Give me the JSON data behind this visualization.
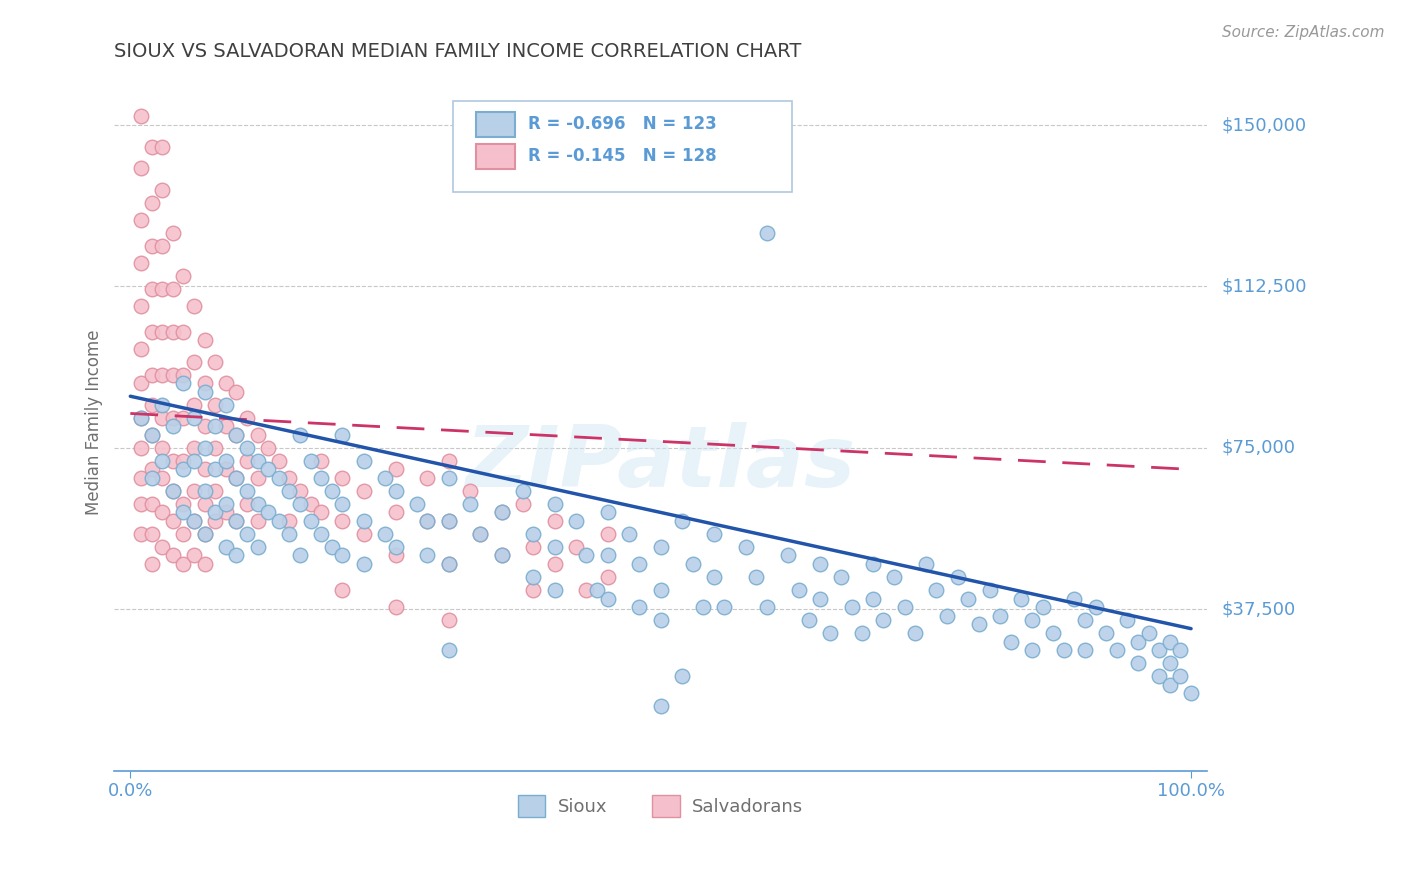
{
  "title": "SIOUX VS SALVADORAN MEDIAN FAMILY INCOME CORRELATION CHART",
  "source_text": "Source: ZipAtlas.com",
  "ylabel": "Median Family Income",
  "yticks": [
    0,
    37500,
    75000,
    112500,
    150000
  ],
  "ytick_labels": [
    "",
    "$37,500",
    "$75,000",
    "$112,500",
    "$150,000"
  ],
  "xlim": [
    -0.015,
    1.015
  ],
  "ylim": [
    0,
    162000
  ],
  "sioux_color": "#b8d0e8",
  "sioux_edge_color": "#7aadd0",
  "salv_color": "#f5c0cc",
  "salv_edge_color": "#e090a0",
  "axis_color": "#5b9bd5",
  "grid_color": "#c8c8c8",
  "watermark": "ZIPatlas",
  "sioux_line_color": "#2255aa",
  "salv_line_color": "#cc3366",
  "sioux_intercept": 87000,
  "sioux_slope": -54000,
  "salv_intercept": 83000,
  "salv_slope": -13000,
  "background_color": "#ffffff",
  "sioux_points": [
    [
      0.01,
      82000
    ],
    [
      0.02,
      78000
    ],
    [
      0.02,
      68000
    ],
    [
      0.03,
      72000
    ],
    [
      0.03,
      85000
    ],
    [
      0.04,
      65000
    ],
    [
      0.04,
      80000
    ],
    [
      0.05,
      90000
    ],
    [
      0.05,
      70000
    ],
    [
      0.05,
      60000
    ],
    [
      0.06,
      82000
    ],
    [
      0.06,
      72000
    ],
    [
      0.06,
      58000
    ],
    [
      0.07,
      88000
    ],
    [
      0.07,
      75000
    ],
    [
      0.07,
      65000
    ],
    [
      0.07,
      55000
    ],
    [
      0.08,
      80000
    ],
    [
      0.08,
      70000
    ],
    [
      0.08,
      60000
    ],
    [
      0.09,
      85000
    ],
    [
      0.09,
      72000
    ],
    [
      0.09,
      62000
    ],
    [
      0.09,
      52000
    ],
    [
      0.1,
      78000
    ],
    [
      0.1,
      68000
    ],
    [
      0.1,
      58000
    ],
    [
      0.1,
      50000
    ],
    [
      0.11,
      75000
    ],
    [
      0.11,
      65000
    ],
    [
      0.11,
      55000
    ],
    [
      0.12,
      72000
    ],
    [
      0.12,
      62000
    ],
    [
      0.12,
      52000
    ],
    [
      0.13,
      70000
    ],
    [
      0.13,
      60000
    ],
    [
      0.14,
      68000
    ],
    [
      0.14,
      58000
    ],
    [
      0.15,
      65000
    ],
    [
      0.15,
      55000
    ],
    [
      0.16,
      78000
    ],
    [
      0.16,
      62000
    ],
    [
      0.16,
      50000
    ],
    [
      0.17,
      72000
    ],
    [
      0.17,
      58000
    ],
    [
      0.18,
      68000
    ],
    [
      0.18,
      55000
    ],
    [
      0.19,
      65000
    ],
    [
      0.19,
      52000
    ],
    [
      0.2,
      78000
    ],
    [
      0.2,
      62000
    ],
    [
      0.2,
      50000
    ],
    [
      0.22,
      72000
    ],
    [
      0.22,
      58000
    ],
    [
      0.22,
      48000
    ],
    [
      0.24,
      68000
    ],
    [
      0.24,
      55000
    ],
    [
      0.25,
      65000
    ],
    [
      0.25,
      52000
    ],
    [
      0.27,
      62000
    ],
    [
      0.28,
      58000
    ],
    [
      0.28,
      50000
    ],
    [
      0.3,
      68000
    ],
    [
      0.3,
      58000
    ],
    [
      0.3,
      48000
    ],
    [
      0.32,
      62000
    ],
    [
      0.33,
      55000
    ],
    [
      0.35,
      60000
    ],
    [
      0.35,
      50000
    ],
    [
      0.37,
      65000
    ],
    [
      0.38,
      55000
    ],
    [
      0.38,
      45000
    ],
    [
      0.4,
      62000
    ],
    [
      0.4,
      52000
    ],
    [
      0.4,
      42000
    ],
    [
      0.42,
      58000
    ],
    [
      0.43,
      50000
    ],
    [
      0.44,
      42000
    ],
    [
      0.45,
      60000
    ],
    [
      0.45,
      50000
    ],
    [
      0.45,
      40000
    ],
    [
      0.47,
      55000
    ],
    [
      0.48,
      48000
    ],
    [
      0.48,
      38000
    ],
    [
      0.5,
      52000
    ],
    [
      0.5,
      42000
    ],
    [
      0.5,
      35000
    ],
    [
      0.52,
      58000
    ],
    [
      0.53,
      48000
    ],
    [
      0.54,
      38000
    ],
    [
      0.55,
      55000
    ],
    [
      0.55,
      45000
    ],
    [
      0.56,
      38000
    ],
    [
      0.58,
      52000
    ],
    [
      0.59,
      45000
    ],
    [
      0.6,
      38000
    ],
    [
      0.62,
      50000
    ],
    [
      0.63,
      42000
    ],
    [
      0.64,
      35000
    ],
    [
      0.65,
      48000
    ],
    [
      0.65,
      40000
    ],
    [
      0.66,
      32000
    ],
    [
      0.67,
      45000
    ],
    [
      0.68,
      38000
    ],
    [
      0.69,
      32000
    ],
    [
      0.7,
      48000
    ],
    [
      0.7,
      40000
    ],
    [
      0.71,
      35000
    ],
    [
      0.72,
      45000
    ],
    [
      0.73,
      38000
    ],
    [
      0.74,
      32000
    ],
    [
      0.75,
      48000
    ],
    [
      0.76,
      42000
    ],
    [
      0.77,
      36000
    ],
    [
      0.78,
      45000
    ],
    [
      0.79,
      40000
    ],
    [
      0.8,
      34000
    ],
    [
      0.81,
      42000
    ],
    [
      0.82,
      36000
    ],
    [
      0.83,
      30000
    ],
    [
      0.84,
      40000
    ],
    [
      0.85,
      35000
    ],
    [
      0.85,
      28000
    ],
    [
      0.86,
      38000
    ],
    [
      0.87,
      32000
    ],
    [
      0.88,
      28000
    ],
    [
      0.89,
      40000
    ],
    [
      0.9,
      35000
    ],
    [
      0.9,
      28000
    ],
    [
      0.91,
      38000
    ],
    [
      0.92,
      32000
    ],
    [
      0.93,
      28000
    ],
    [
      0.94,
      35000
    ],
    [
      0.95,
      30000
    ],
    [
      0.95,
      25000
    ],
    [
      0.96,
      32000
    ],
    [
      0.97,
      28000
    ],
    [
      0.97,
      22000
    ],
    [
      0.98,
      30000
    ],
    [
      0.98,
      25000
    ],
    [
      0.98,
      20000
    ],
    [
      0.99,
      28000
    ],
    [
      0.99,
      22000
    ],
    [
      1.0,
      18000
    ],
    [
      0.5,
      15000
    ],
    [
      0.52,
      22000
    ],
    [
      0.3,
      28000
    ],
    [
      0.6,
      125000
    ]
  ],
  "salv_points": [
    [
      0.01,
      152000
    ],
    [
      0.01,
      140000
    ],
    [
      0.01,
      128000
    ],
    [
      0.01,
      118000
    ],
    [
      0.01,
      108000
    ],
    [
      0.01,
      98000
    ],
    [
      0.01,
      90000
    ],
    [
      0.01,
      82000
    ],
    [
      0.01,
      75000
    ],
    [
      0.01,
      68000
    ],
    [
      0.01,
      62000
    ],
    [
      0.01,
      55000
    ],
    [
      0.02,
      145000
    ],
    [
      0.02,
      132000
    ],
    [
      0.02,
      122000
    ],
    [
      0.02,
      112000
    ],
    [
      0.02,
      102000
    ],
    [
      0.02,
      92000
    ],
    [
      0.02,
      85000
    ],
    [
      0.02,
      78000
    ],
    [
      0.02,
      70000
    ],
    [
      0.02,
      62000
    ],
    [
      0.02,
      55000
    ],
    [
      0.02,
      48000
    ],
    [
      0.03,
      135000
    ],
    [
      0.03,
      122000
    ],
    [
      0.03,
      112000
    ],
    [
      0.03,
      102000
    ],
    [
      0.03,
      92000
    ],
    [
      0.03,
      82000
    ],
    [
      0.03,
      75000
    ],
    [
      0.03,
      68000
    ],
    [
      0.03,
      60000
    ],
    [
      0.03,
      52000
    ],
    [
      0.04,
      125000
    ],
    [
      0.04,
      112000
    ],
    [
      0.04,
      102000
    ],
    [
      0.04,
      92000
    ],
    [
      0.04,
      82000
    ],
    [
      0.04,
      72000
    ],
    [
      0.04,
      65000
    ],
    [
      0.04,
      58000
    ],
    [
      0.04,
      50000
    ],
    [
      0.05,
      115000
    ],
    [
      0.05,
      102000
    ],
    [
      0.05,
      92000
    ],
    [
      0.05,
      82000
    ],
    [
      0.05,
      72000
    ],
    [
      0.05,
      62000
    ],
    [
      0.05,
      55000
    ],
    [
      0.05,
      48000
    ],
    [
      0.06,
      108000
    ],
    [
      0.06,
      95000
    ],
    [
      0.06,
      85000
    ],
    [
      0.06,
      75000
    ],
    [
      0.06,
      65000
    ],
    [
      0.06,
      58000
    ],
    [
      0.06,
      50000
    ],
    [
      0.07,
      100000
    ],
    [
      0.07,
      90000
    ],
    [
      0.07,
      80000
    ],
    [
      0.07,
      70000
    ],
    [
      0.07,
      62000
    ],
    [
      0.07,
      55000
    ],
    [
      0.07,
      48000
    ],
    [
      0.08,
      95000
    ],
    [
      0.08,
      85000
    ],
    [
      0.08,
      75000
    ],
    [
      0.08,
      65000
    ],
    [
      0.08,
      58000
    ],
    [
      0.09,
      90000
    ],
    [
      0.09,
      80000
    ],
    [
      0.09,
      70000
    ],
    [
      0.09,
      60000
    ],
    [
      0.1,
      88000
    ],
    [
      0.1,
      78000
    ],
    [
      0.1,
      68000
    ],
    [
      0.1,
      58000
    ],
    [
      0.11,
      82000
    ],
    [
      0.11,
      72000
    ],
    [
      0.11,
      62000
    ],
    [
      0.12,
      78000
    ],
    [
      0.12,
      68000
    ],
    [
      0.12,
      58000
    ],
    [
      0.13,
      75000
    ],
    [
      0.14,
      72000
    ],
    [
      0.15,
      68000
    ],
    [
      0.15,
      58000
    ],
    [
      0.16,
      65000
    ],
    [
      0.17,
      62000
    ],
    [
      0.18,
      72000
    ],
    [
      0.18,
      60000
    ],
    [
      0.2,
      68000
    ],
    [
      0.2,
      58000
    ],
    [
      0.22,
      65000
    ],
    [
      0.22,
      55000
    ],
    [
      0.25,
      70000
    ],
    [
      0.25,
      60000
    ],
    [
      0.25,
      50000
    ],
    [
      0.28,
      68000
    ],
    [
      0.28,
      58000
    ],
    [
      0.3,
      72000
    ],
    [
      0.3,
      58000
    ],
    [
      0.3,
      48000
    ],
    [
      0.32,
      65000
    ],
    [
      0.33,
      55000
    ],
    [
      0.35,
      60000
    ],
    [
      0.35,
      50000
    ],
    [
      0.37,
      62000
    ],
    [
      0.38,
      52000
    ],
    [
      0.38,
      42000
    ],
    [
      0.4,
      58000
    ],
    [
      0.4,
      48000
    ],
    [
      0.42,
      52000
    ],
    [
      0.43,
      42000
    ],
    [
      0.45,
      55000
    ],
    [
      0.45,
      45000
    ],
    [
      0.2,
      42000
    ],
    [
      0.25,
      38000
    ],
    [
      0.3,
      35000
    ],
    [
      0.03,
      145000
    ]
  ]
}
